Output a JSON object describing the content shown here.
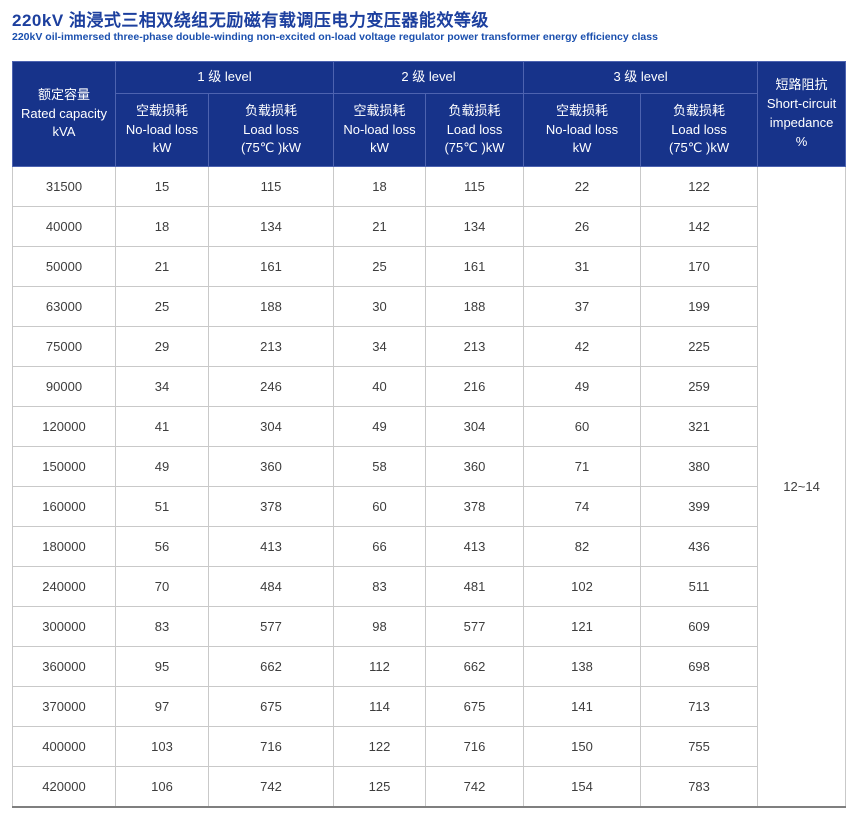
{
  "page": {
    "title_zh": "220kV 油浸式三相双绕组无励磁有载调压电力变压器能效等级",
    "title_en": "220kV oil-immersed three-phase double-winding non-excited on-load voltage regulator power transformer energy efficiency class"
  },
  "colors": {
    "header_bg": "#17338a",
    "title_blue": "#1c3f9e",
    "subtitle_blue": "#1a4fae"
  },
  "table": {
    "headers": {
      "capacity": "额定容量\nRated capacity\nkVA",
      "level1": "1 级 level",
      "level2": "2 级 level",
      "level3": "3 级 level",
      "no_load": "空载损耗\nNo-load loss\nkW",
      "load": "负载损耗\nLoad loss\n(75℃ )kW",
      "impedance": "短路阻抗\nShort-circuit\nimpedance\n%"
    },
    "impedance_value": "12~14",
    "rows": [
      {
        "capacity": "31500",
        "l1_no_load": "15",
        "l1_load": "115",
        "l2_no_load": "18",
        "l2_load": "115",
        "l3_no_load": "22",
        "l3_load": "122"
      },
      {
        "capacity": "40000",
        "l1_no_load": "18",
        "l1_load": "134",
        "l2_no_load": "21",
        "l2_load": "134",
        "l3_no_load": "26",
        "l3_load": "142"
      },
      {
        "capacity": "50000",
        "l1_no_load": "21",
        "l1_load": "161",
        "l2_no_load": "25",
        "l2_load": "161",
        "l3_no_load": "31",
        "l3_load": "170"
      },
      {
        "capacity": "63000",
        "l1_no_load": "25",
        "l1_load": "188",
        "l2_no_load": "30",
        "l2_load": "188",
        "l3_no_load": "37",
        "l3_load": "199"
      },
      {
        "capacity": "75000",
        "l1_no_load": "29",
        "l1_load": "213",
        "l2_no_load": "34",
        "l2_load": "213",
        "l3_no_load": "42",
        "l3_load": "225"
      },
      {
        "capacity": "90000",
        "l1_no_load": "34",
        "l1_load": "246",
        "l2_no_load": "40",
        "l2_load": "216",
        "l3_no_load": "49",
        "l3_load": "259"
      },
      {
        "capacity": "120000",
        "l1_no_load": "41",
        "l1_load": "304",
        "l2_no_load": "49",
        "l2_load": "304",
        "l3_no_load": "60",
        "l3_load": "321"
      },
      {
        "capacity": "150000",
        "l1_no_load": "49",
        "l1_load": "360",
        "l2_no_load": "58",
        "l2_load": "360",
        "l3_no_load": "71",
        "l3_load": "380"
      },
      {
        "capacity": "160000",
        "l1_no_load": "51",
        "l1_load": "378",
        "l2_no_load": "60",
        "l2_load": "378",
        "l3_no_load": "74",
        "l3_load": "399"
      },
      {
        "capacity": "180000",
        "l1_no_load": "56",
        "l1_load": "413",
        "l2_no_load": "66",
        "l2_load": "413",
        "l3_no_load": "82",
        "l3_load": "436"
      },
      {
        "capacity": "240000",
        "l1_no_load": "70",
        "l1_load": "484",
        "l2_no_load": "83",
        "l2_load": "481",
        "l3_no_load": "102",
        "l3_load": "511"
      },
      {
        "capacity": "300000",
        "l1_no_load": "83",
        "l1_load": "577",
        "l2_no_load": "98",
        "l2_load": "577",
        "l3_no_load": "121",
        "l3_load": "609"
      },
      {
        "capacity": "360000",
        "l1_no_load": "95",
        "l1_load": "662",
        "l2_no_load": "112",
        "l2_load": "662",
        "l3_no_load": "138",
        "l3_load": "698"
      },
      {
        "capacity": "370000",
        "l1_no_load": "97",
        "l1_load": "675",
        "l2_no_load": "114",
        "l2_load": "675",
        "l3_no_load": "141",
        "l3_load": "713"
      },
      {
        "capacity": "400000",
        "l1_no_load": "103",
        "l1_load": "716",
        "l2_no_load": "122",
        "l2_load": "716",
        "l3_no_load": "150",
        "l3_load": "755"
      },
      {
        "capacity": "420000",
        "l1_no_load": "106",
        "l1_load": "742",
        "l2_no_load": "125",
        "l2_load": "742",
        "l3_no_load": "154",
        "l3_load": "783"
      }
    ]
  }
}
